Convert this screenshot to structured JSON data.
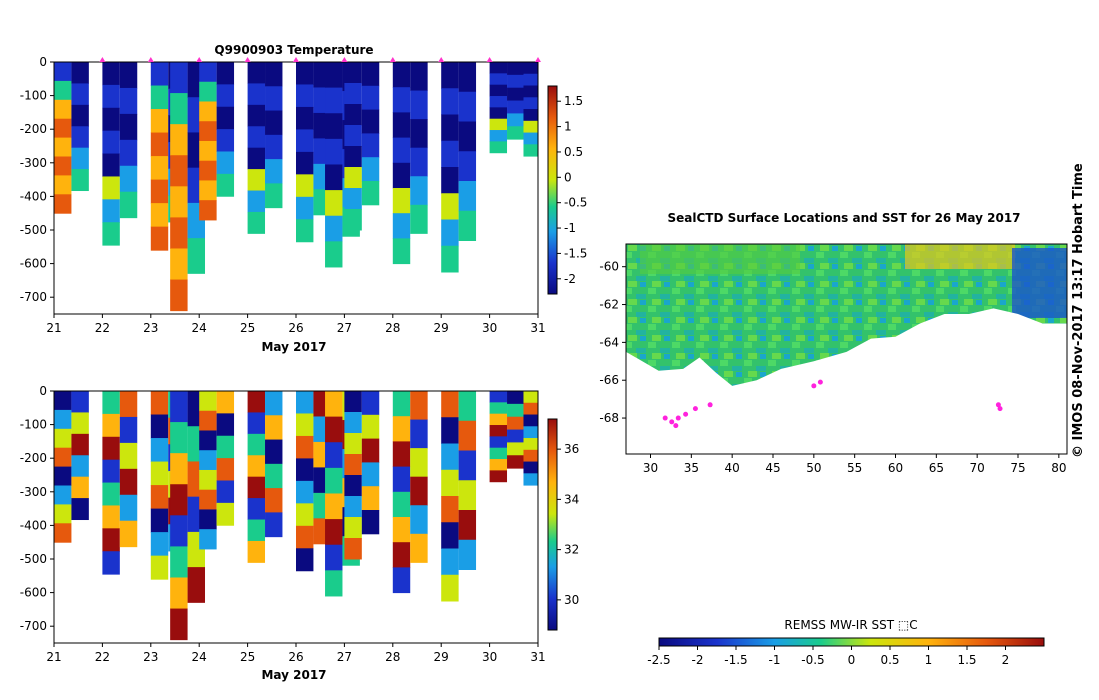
{
  "figure": {
    "credit": "© IMOS 08-Nov-2017 13:17 Hobart Time"
  },
  "chart_data": [
    {
      "type": "heatmap",
      "title": "Q9900903  Temperature",
      "xlabel": "May 2017",
      "ylabel": "",
      "x_ticks": [
        "21",
        "22",
        "23",
        "24",
        "25",
        "26",
        "27",
        "28",
        "29",
        "30",
        "31"
      ],
      "y_ticks": [
        "0",
        "-100",
        "-200",
        "-300",
        "-400",
        "-500",
        "-600",
        "-700"
      ],
      "xlim": [
        21,
        31
      ],
      "ylim": [
        -750,
        0
      ],
      "colorbar": {
        "ticks": [
          "1.5",
          "1",
          "0.5",
          "0",
          "-0.5",
          "-1",
          "-1.5",
          "-2"
        ],
        "range": [
          -2.3,
          1.8
        ]
      },
      "profile_markers_day": [
        22.0,
        23.0,
        24.0,
        25.0,
        26.0,
        27.0,
        28.0,
        29.0,
        30.0,
        31.0
      ],
      "profiles": [
        {
          "day": 21.0,
          "max_depth": -450,
          "value_scale": "temperature"
        },
        {
          "day": 22.0,
          "max_depth": -545,
          "value_scale": "temperature"
        },
        {
          "day": 23.0,
          "max_depth": -560,
          "value_scale": "temperature"
        },
        {
          "day": 23.4,
          "max_depth": -740,
          "value_scale": "temperature"
        },
        {
          "day": 24.0,
          "max_depth": -470,
          "value_scale": "temperature"
        },
        {
          "day": 25.0,
          "max_depth": -510,
          "value_scale": "temperature"
        },
        {
          "day": 26.0,
          "max_depth": -535,
          "value_scale": "temperature"
        },
        {
          "day": 26.6,
          "max_depth": -610,
          "value_scale": "temperature"
        },
        {
          "day": 27.0,
          "max_depth": -500,
          "value_scale": "temperature"
        },
        {
          "day": 28.0,
          "max_depth": -600,
          "value_scale": "temperature"
        },
        {
          "day": 29.0,
          "max_depth": -625,
          "value_scale": "temperature"
        },
        {
          "day": 30.0,
          "max_depth": -270,
          "value_scale": "temperature"
        },
        {
          "day": 30.7,
          "max_depth": -280,
          "value_scale": "temperature"
        }
      ]
    },
    {
      "type": "heatmap",
      "title": "",
      "xlabel": "May 2017",
      "ylabel": "",
      "x_ticks": [
        "21",
        "22",
        "23",
        "24",
        "25",
        "26",
        "27",
        "28",
        "29",
        "30",
        "31"
      ],
      "y_ticks": [
        "0",
        "-100",
        "-200",
        "-300",
        "-400",
        "-500",
        "-600",
        "-700"
      ],
      "xlim": [
        21,
        31
      ],
      "ylim": [
        -750,
        0
      ],
      "colorbar": {
        "ticks": [
          "36",
          "34",
          "32",
          "30"
        ],
        "range": [
          28.8,
          37.2
        ]
      },
      "profiles": [
        {
          "day": 21.0,
          "max_depth": -450
        },
        {
          "day": 22.0,
          "max_depth": -545
        },
        {
          "day": 23.0,
          "max_depth": -560
        },
        {
          "day": 23.4,
          "max_depth": -740
        },
        {
          "day": 24.0,
          "max_depth": -470
        },
        {
          "day": 25.0,
          "max_depth": -510
        },
        {
          "day": 26.0,
          "max_depth": -535
        },
        {
          "day": 26.6,
          "max_depth": -610
        },
        {
          "day": 27.0,
          "max_depth": -500
        },
        {
          "day": 28.0,
          "max_depth": -600
        },
        {
          "day": 29.0,
          "max_depth": -625
        },
        {
          "day": 30.0,
          "max_depth": -270
        },
        {
          "day": 30.7,
          "max_depth": -280
        }
      ]
    },
    {
      "type": "heatmap",
      "title": "SealCTD Surface Locations and SST for 26 May 2017",
      "xlabel": "",
      "ylabel": "",
      "x_ticks": [
        "30",
        "35",
        "40",
        "45",
        "50",
        "55",
        "60",
        "65",
        "70",
        "75",
        "80"
      ],
      "y_ticks": [
        "-60",
        "-62",
        "-64",
        "-66",
        "-68"
      ],
      "xlim": [
        27,
        81
      ],
      "ylim": [
        -69.9,
        -58.8
      ],
      "colorbar": {
        "label": "REMSS MW-IR SST ⬚C",
        "ticks": [
          "-2.5",
          "-2",
          "-1.5",
          "-1",
          "-0.5",
          "0",
          "0.5",
          "1",
          "1.5",
          "2"
        ],
        "range": [
          -2.5,
          2.5
        ]
      },
      "ice_edge": [
        [
          27,
          -64.5
        ],
        [
          31,
          -65.5
        ],
        [
          34,
          -65.4
        ],
        [
          36,
          -64.8
        ],
        [
          38,
          -65.6
        ],
        [
          40,
          -66.3
        ],
        [
          43,
          -66.0
        ],
        [
          46,
          -65.4
        ],
        [
          50,
          -65.0
        ],
        [
          54,
          -64.5
        ],
        [
          57,
          -63.8
        ],
        [
          60,
          -63.7
        ],
        [
          63,
          -63.0
        ],
        [
          66,
          -62.5
        ],
        [
          69,
          -62.5
        ],
        [
          72,
          -62.2
        ],
        [
          75,
          -62.5
        ],
        [
          78,
          -63.0
        ],
        [
          81,
          -63.0
        ]
      ],
      "seal_locations": [
        [
          31.8,
          -68.0
        ],
        [
          32.6,
          -68.2
        ],
        [
          33.1,
          -68.4
        ],
        [
          33.4,
          -68.0
        ],
        [
          34.3,
          -67.8
        ],
        [
          35.5,
          -67.5
        ],
        [
          37.3,
          -67.3
        ],
        [
          50.0,
          -66.3
        ],
        [
          50.8,
          -66.1
        ],
        [
          72.6,
          -67.3
        ],
        [
          72.8,
          -67.5
        ]
      ]
    }
  ]
}
